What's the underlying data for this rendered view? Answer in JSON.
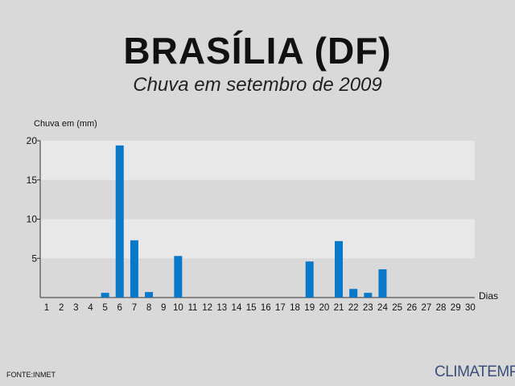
{
  "header": {
    "title": "BRASÍLIA (DF)",
    "subtitle": "Chuva em setembro de 2009"
  },
  "footer": {
    "source": "FONTE:INMET",
    "brand": "CLIMATEMPO"
  },
  "colors": {
    "background": "#d9d9d9",
    "band_light": "#e8e8e8",
    "bar": "#0a78c8",
    "text": "#111111"
  },
  "chart_data": {
    "type": "bar",
    "ylabel": "Chuva em (mm)",
    "xlabel": "Dias",
    "ylim": [
      0,
      20
    ],
    "yticks": [
      5,
      10,
      15,
      20
    ],
    "grid": "alternating horizontal bands",
    "categories": [
      "1",
      "2",
      "3",
      "4",
      "5",
      "6",
      "7",
      "8",
      "9",
      "10",
      "11",
      "12",
      "13",
      "14",
      "15",
      "16",
      "17",
      "18",
      "19",
      "20",
      "21",
      "22",
      "23",
      "24",
      "25",
      "26",
      "27",
      "28",
      "29",
      "30"
    ],
    "values": [
      0,
      0,
      0,
      0,
      0.6,
      19.4,
      7.3,
      0.7,
      0,
      5.3,
      0,
      0,
      0,
      0,
      0,
      0,
      0,
      0,
      4.6,
      0,
      7.2,
      1.1,
      0.6,
      3.6,
      0,
      0,
      0,
      0,
      0,
      0
    ]
  }
}
